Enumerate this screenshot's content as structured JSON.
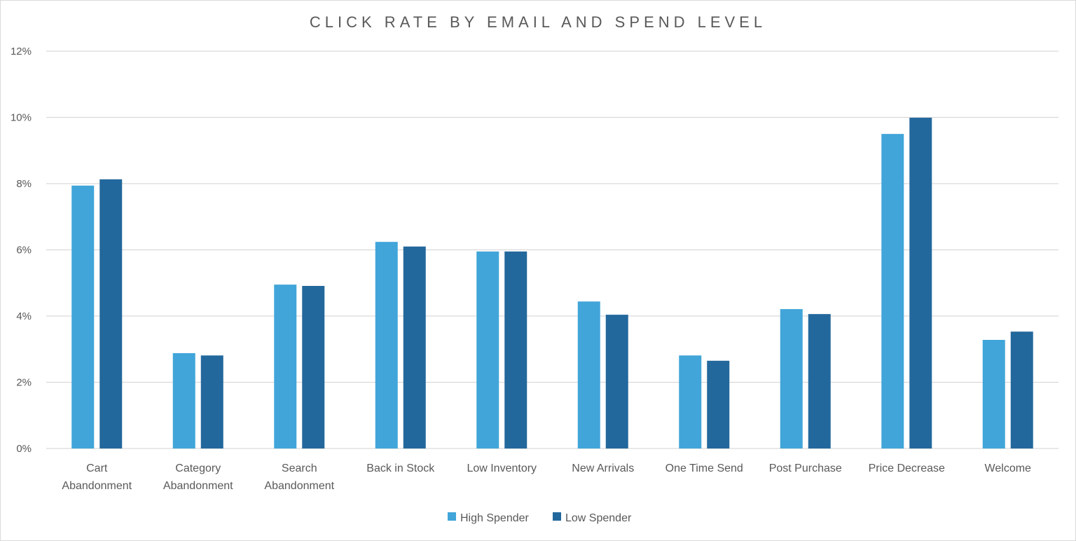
{
  "chart_data": {
    "type": "bar",
    "title": "CLICK RATE BY EMAIL AND SPEND LEVEL",
    "xlabel": "",
    "ylabel": "",
    "ylim": [
      0,
      12
    ],
    "yticks": [
      "0%",
      "2%",
      "4%",
      "6%",
      "8%",
      "10%",
      "12%"
    ],
    "grid": true,
    "legend_position": "bottom",
    "categories": [
      [
        "Cart",
        "Abandonment"
      ],
      [
        "Category",
        "Abandonment"
      ],
      [
        "Search",
        "Abandonment"
      ],
      [
        "Back in Stock"
      ],
      [
        "Low Inventory"
      ],
      [
        "New Arrivals"
      ],
      [
        "One Time Send"
      ],
      [
        "Post Purchase"
      ],
      [
        "Price Decrease"
      ],
      [
        "Welcome"
      ]
    ],
    "series": [
      {
        "name": "High Spender",
        "color": "#41a5d9",
        "values": [
          7.94,
          2.88,
          4.95,
          6.24,
          5.95,
          4.44,
          2.81,
          4.21,
          9.5,
          3.28
        ]
      },
      {
        "name": "Low Spender",
        "color": "#23689c",
        "values": [
          8.13,
          2.81,
          4.91,
          6.1,
          5.95,
          4.04,
          2.65,
          4.06,
          9.99,
          3.53
        ]
      }
    ]
  }
}
